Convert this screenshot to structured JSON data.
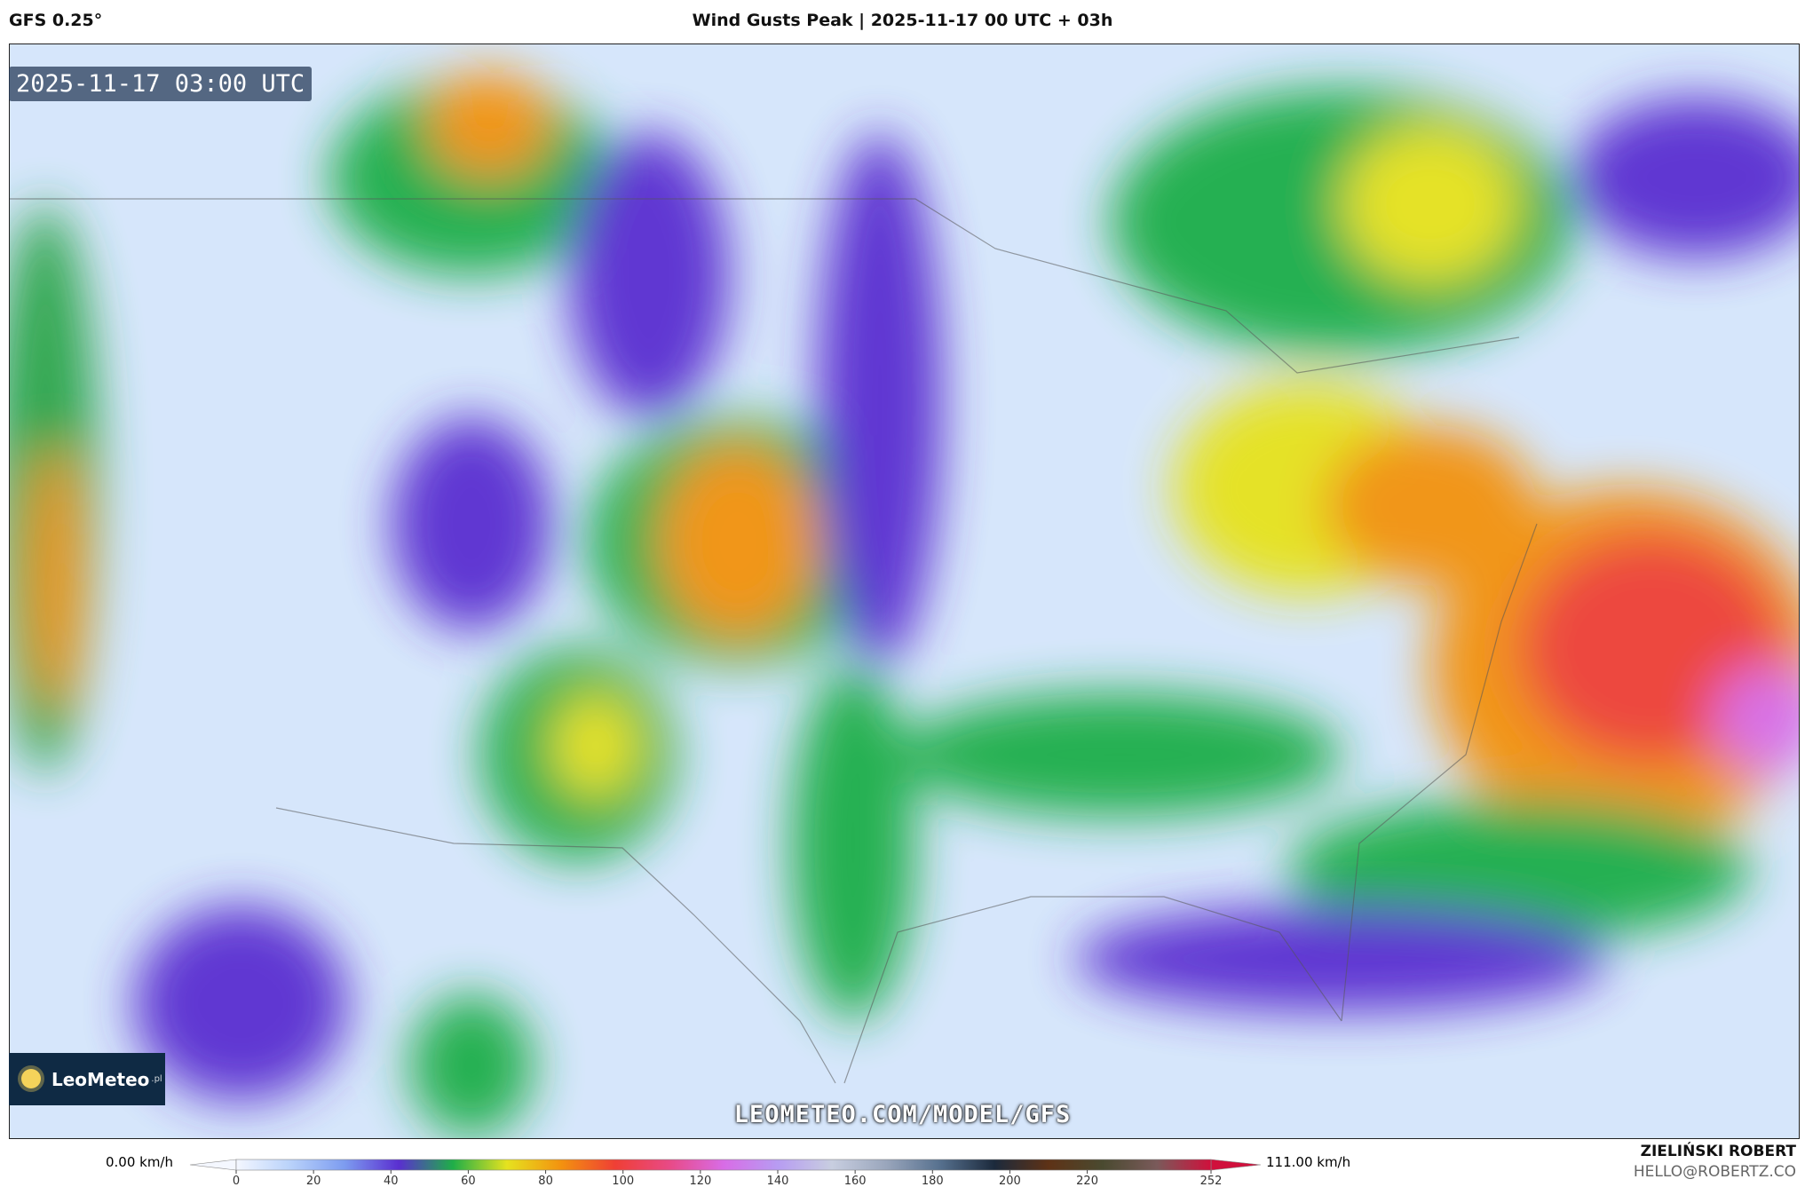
{
  "header": {
    "model": "GFS 0.25°",
    "title": "Wind Gusts Peak | 2025-11-17 00 UTC + 03h"
  },
  "map": {
    "timestamp": "2025-11-17 03:00 UTC",
    "logo": "LeoMeteo",
    "logo_suffix": ".pl",
    "watermark": "LEOMETEO.COM/MODEL/GFS"
  },
  "colorbar": {
    "min_label": "0.00 km/h",
    "max_label": "111.00 km/h",
    "range": [
      0,
      252
    ],
    "ticks": [
      0,
      20,
      40,
      60,
      80,
      100,
      120,
      140,
      160,
      180,
      200,
      220,
      252
    ],
    "colors": [
      "#f4f7ff",
      "#b9d2fa",
      "#7d9cf0",
      "#5a2fd0",
      "#1fae48",
      "#e6e21f",
      "#f3920f",
      "#ef3f35",
      "#e84a86",
      "#d86ce6",
      "#b79cf2",
      "#c8cee0",
      "#9aa6bc",
      "#56708e",
      "#1c2a3c",
      "#5e3216",
      "#4a4a30",
      "#7a5a5a",
      "#d0103c"
    ]
  },
  "credits": {
    "author": "ZIELIŃSKI ROBERT",
    "email": "HELLO@ROBERTZ.CO"
  }
}
